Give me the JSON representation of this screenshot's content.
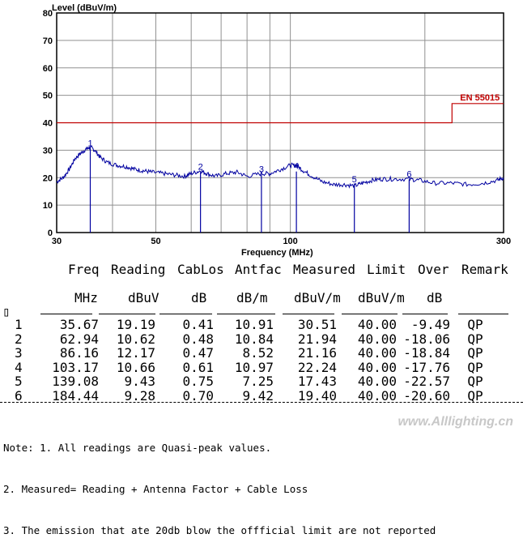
{
  "chart_data": {
    "type": "line",
    "ylabel": "Level (dBuV/m)",
    "xlabel": "Frequency (MHz)",
    "x_scale": "log",
    "xlim": [
      30,
      300
    ],
    "ylim": [
      0,
      80
    ],
    "x_ticks": [
      30,
      50,
      100,
      300
    ],
    "y_ticks": [
      0,
      10,
      20,
      30,
      40,
      50,
      60,
      70,
      80
    ],
    "grid": true,
    "limit_line": {
      "name": "EN 55015",
      "points": [
        [
          30,
          40
        ],
        [
          230,
          40
        ],
        [
          230,
          47
        ],
        [
          300,
          47
        ]
      ],
      "color": "#c00000"
    },
    "trace": {
      "color": "#0000a0",
      "x": [
        30,
        31,
        32,
        33,
        34,
        35,
        35.67,
        36.5,
        37.5,
        39,
        41,
        43,
        45,
        47,
        49,
        52,
        55,
        58,
        60,
        62.94,
        65,
        68,
        72,
        76,
        80,
        86.16,
        90,
        95,
        100,
        103.17,
        107,
        112,
        118,
        125,
        132,
        139.08,
        145,
        152,
        160,
        170,
        184.44,
        195,
        210,
        230,
        250,
        270,
        290,
        300
      ],
      "y": [
        18.5,
        20,
        23,
        27,
        29,
        30.5,
        31,
        30,
        27.5,
        25.5,
        24.5,
        24,
        23,
        22.5,
        22,
        21.5,
        21,
        20.5,
        21.5,
        22.5,
        21.5,
        20.5,
        21.5,
        22,
        20.5,
        21.5,
        21.5,
        23,
        24.5,
        24.5,
        22.5,
        20.5,
        18.5,
        17.5,
        17.5,
        17,
        18,
        19,
        19.5,
        19.5,
        19.5,
        19,
        18,
        18,
        17.5,
        18,
        19,
        20
      ]
    },
    "markers": [
      {
        "label": "1",
        "x": 35.67,
        "y": 30.51
      },
      {
        "label": "2",
        "x": 62.94,
        "y": 21.94
      },
      {
        "label": "3",
        "x": 86.16,
        "y": 21.16
      },
      {
        "label": "4",
        "x": 103.17,
        "y": 22.24
      },
      {
        "label": "5",
        "x": 139.08,
        "y": 17.43
      },
      {
        "label": "6",
        "x": 184.44,
        "y": 19.4
      }
    ]
  },
  "table": {
    "headers": [
      "Freq",
      "Reading",
      "CabLos",
      "Antfac",
      "Measured",
      "Limit",
      "Over",
      "Remark"
    ],
    "units": [
      "MHz",
      "dBuV",
      "dB",
      "dB/m",
      "dBuV/m",
      "dBuV/m",
      "dB",
      ""
    ],
    "marker_glyph": "▯",
    "rows": [
      [
        "1",
        "35.67",
        "19.19",
        "0.41",
        "10.91",
        "30.51",
        "40.00",
        "-9.49",
        "QP"
      ],
      [
        "2",
        "62.94",
        "10.62",
        "0.48",
        "10.84",
        "21.94",
        "40.00",
        "-18.06",
        "QP"
      ],
      [
        "3",
        "86.16",
        "12.17",
        "0.47",
        "8.52",
        "21.16",
        "40.00",
        "-18.84",
        "QP"
      ],
      [
        "4",
        "103.17",
        "10.66",
        "0.61",
        "10.97",
        "22.24",
        "40.00",
        "-17.76",
        "QP"
      ],
      [
        "5",
        "139.08",
        "9.43",
        "0.75",
        "7.25",
        "17.43",
        "40.00",
        "-22.57",
        "QP"
      ],
      [
        "6",
        "184.44",
        "9.28",
        "0.70",
        "9.42",
        "19.40",
        "40.00",
        "-20.60",
        "QP"
      ]
    ]
  },
  "notes": [
    "Note: 1. All readings are Quasi-peak values.",
    "2. Measured= Reading + Antenna Factor + Cable Loss",
    "3. The emission that ate 20db blow the offficial limit are not reported"
  ],
  "watermark": "www.Alllighting.cn"
}
